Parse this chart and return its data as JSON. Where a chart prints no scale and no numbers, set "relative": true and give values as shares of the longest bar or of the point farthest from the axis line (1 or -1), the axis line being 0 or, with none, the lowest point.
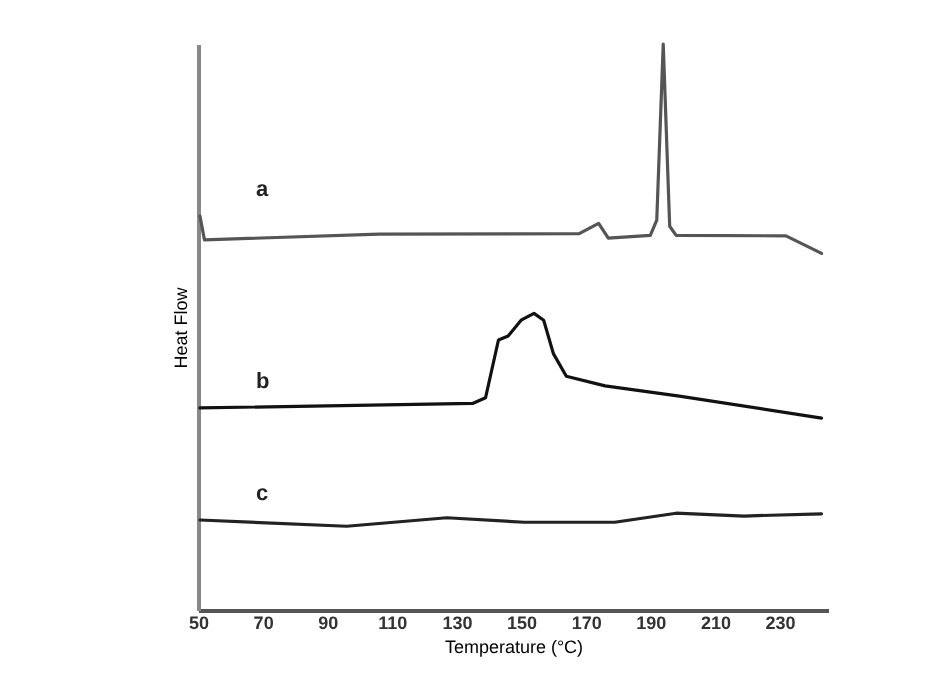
{
  "chart_data": {
    "type": "line",
    "xlabel": "Temperature (°C)",
    "ylabel": "Heat Flow",
    "relative": true,
    "xlim": [
      50,
      245
    ],
    "xticks": [
      50,
      70,
      90,
      110,
      130,
      150,
      170,
      190,
      210,
      230
    ],
    "grid": false,
    "legend": false,
    "marker": "none",
    "line_style": "solid",
    "series": [
      {
        "name": "a",
        "color": "#555555",
        "x": [
          50.6,
          52,
          106,
          168,
          174,
          177,
          190,
          192,
          194,
          196,
          198,
          232,
          243
        ],
        "values": [
          0.696,
          0.654,
          0.664,
          0.665,
          0.683,
          0.657,
          0.662,
          0.689,
          1,
          0.678,
          0.662,
          0.661,
          0.63
        ]
      },
      {
        "name": "b",
        "color": "#111111",
        "x": [
          50.6,
          135,
          139,
          143,
          146,
          150,
          154,
          157,
          160,
          164,
          176,
          199,
          243
        ],
        "values": [
          0.357,
          0.365,
          0.375,
          0.477,
          0.484,
          0.512,
          0.524,
          0.512,
          0.453,
          0.413,
          0.396,
          0.378,
          0.339
        ]
      },
      {
        "name": "c",
        "color": "#222222",
        "x": [
          50.6,
          96,
          127,
          151,
          179,
          198,
          219,
          243
        ],
        "values": [
          0.159,
          0.148,
          0.163,
          0.155,
          0.155,
          0.171,
          0.166,
          0.17
        ]
      }
    ]
  }
}
